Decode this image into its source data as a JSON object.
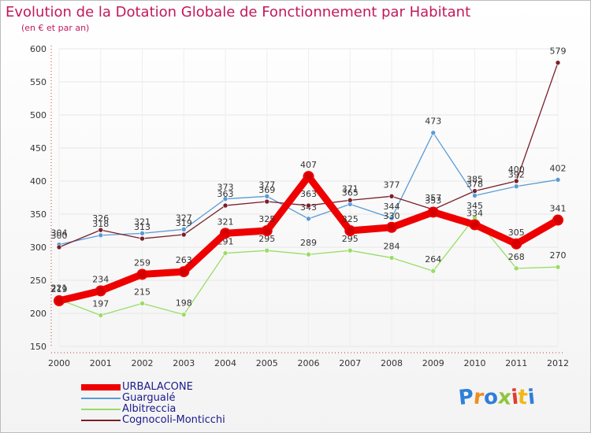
{
  "title": "Evolution de la Dotation Globale de Fonctionnement par Habitant",
  "subtitle": "(en € et par an)",
  "chart_data": {
    "type": "line",
    "x": [
      "2000",
      "2001",
      "2002",
      "2003",
      "2004",
      "2005",
      "2006",
      "2007",
      "2008",
      "2009",
      "2010",
      "2011",
      "2012"
    ],
    "ylim": [
      150,
      600
    ],
    "yticks": [
      150,
      200,
      250,
      300,
      350,
      400,
      450,
      500,
      550,
      600
    ],
    "series": [
      {
        "name": "URBALACONE",
        "color": "#ee0000",
        "values": [
          219,
          234,
          259,
          263,
          321,
          325,
          407,
          325,
          330,
          353,
          334,
          305,
          341
        ]
      },
      {
        "name": "Guargualé",
        "color": "#5a9bd4",
        "values": [
          304,
          318,
          321,
          327,
          373,
          377,
          343,
          365,
          344,
          473,
          378,
          392,
          402
        ]
      },
      {
        "name": "Albitreccia",
        "color": "#99dd66",
        "values": [
          221,
          197,
          215,
          198,
          291,
          295,
          289,
          295,
          284,
          264,
          345,
          268,
          270
        ]
      },
      {
        "name": "Cognocoli-Monticchi",
        "color": "#7a1f2b",
        "values": [
          300,
          326,
          313,
          319,
          363,
          369,
          363,
          371,
          377,
          357,
          385,
          400,
          579
        ]
      }
    ]
  },
  "logo": {
    "letters": [
      "P",
      "r",
      "o",
      "x",
      "i",
      "t",
      "i"
    ],
    "colors": [
      "#2f7fd8",
      "#f08c1a",
      "#2f7fd8",
      "#8ec63f",
      "#e03c31",
      "#f0b81a",
      "#2f7fd8"
    ]
  }
}
